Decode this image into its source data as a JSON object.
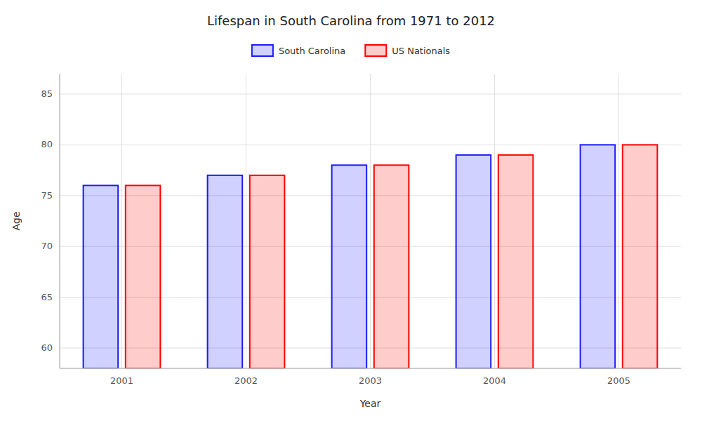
{
  "chart_data": {
    "type": "bar",
    "title": "Lifespan in South Carolina from 1971 to 2012",
    "x_label": "Year",
    "y_label": "Age",
    "categories": [
      "2001",
      "2002",
      "2003",
      "2004",
      "2005"
    ],
    "series": [
      {
        "name": "South Carolina",
        "color": "#1a1aff",
        "values": [
          76,
          77,
          78,
          79,
          80
        ]
      },
      {
        "name": "US Nationals",
        "color": "#ff0000",
        "values": [
          76,
          77,
          78,
          79,
          80
        ]
      }
    ],
    "ylim": [
      58,
      87
    ],
    "yticks": [
      60,
      65,
      70,
      75,
      80,
      85
    ],
    "grid": true,
    "legend": "top"
  }
}
